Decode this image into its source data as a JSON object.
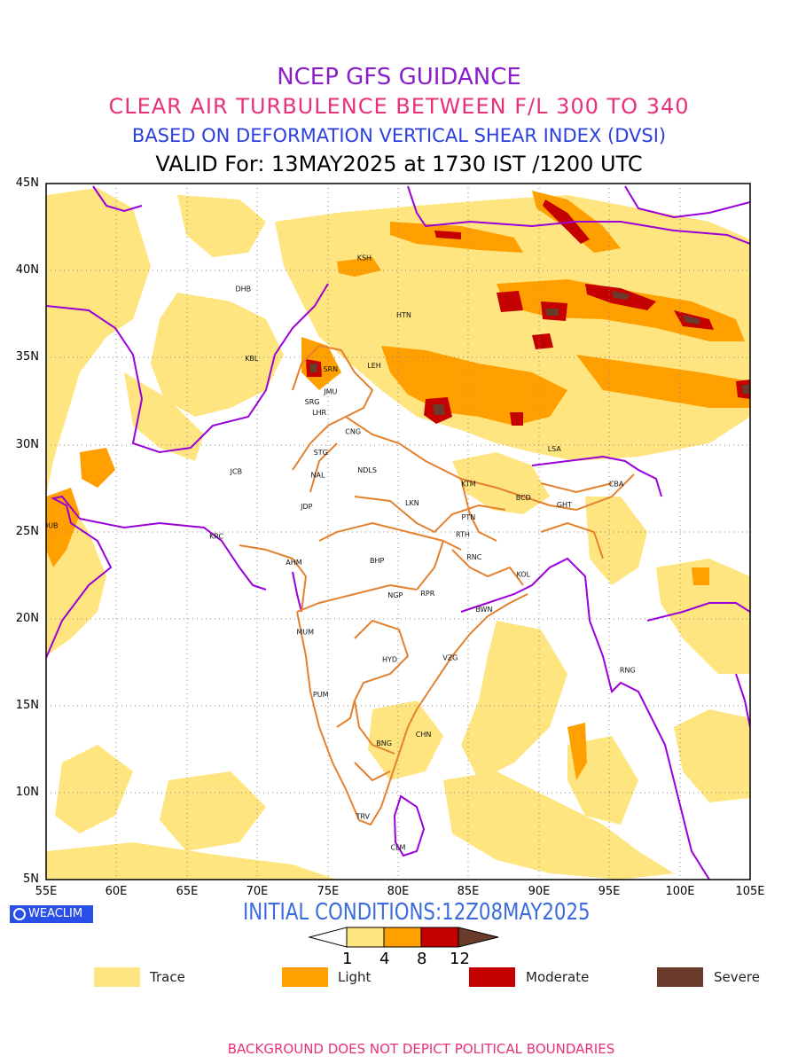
{
  "titles": {
    "line1": "NCEP GFS GUIDANCE",
    "line2": "CLEAR AIR TURBULENCE BETWEEN F/L 300 TO 340",
    "line3": "BASED ON DEFORMATION VERTICAL SHEAR INDEX (DVSI)",
    "line4": "VALID For: 13MAY2025 at 1730 IST /1200 UTC"
  },
  "axes": {
    "lat_labels": [
      "45N",
      "40N",
      "35N",
      "30N",
      "25N",
      "20N",
      "15N",
      "10N",
      "5N"
    ],
    "lon_labels": [
      "55E",
      "60E",
      "65E",
      "70E",
      "75E",
      "80E",
      "85E",
      "90E",
      "95E",
      "100E",
      "105E"
    ],
    "lat_range": [
      5,
      45
    ],
    "lon_range": [
      55,
      105
    ],
    "grid": "dotted"
  },
  "cities": [
    {
      "code": "KSH",
      "lon": 77.6,
      "lat": 40.6
    },
    {
      "code": "DHB",
      "lon": 69.0,
      "lat": 38.8
    },
    {
      "code": "HTN",
      "lon": 80.4,
      "lat": 37.3
    },
    {
      "code": "KBL",
      "lon": 69.6,
      "lat": 34.8
    },
    {
      "code": "SRN",
      "lon": 75.2,
      "lat": 34.2
    },
    {
      "code": "LEH",
      "lon": 78.3,
      "lat": 34.4
    },
    {
      "code": "JMU",
      "lon": 75.2,
      "lat": 32.9
    },
    {
      "code": "SRG",
      "lon": 73.9,
      "lat": 32.3
    },
    {
      "code": "LHR",
      "lon": 74.4,
      "lat": 31.7
    },
    {
      "code": "CNG",
      "lon": 76.8,
      "lat": 30.6
    },
    {
      "code": "STG",
      "lon": 74.5,
      "lat": 29.4
    },
    {
      "code": "LSA",
      "lon": 91.1,
      "lat": 29.6
    },
    {
      "code": "JCB",
      "lon": 68.5,
      "lat": 28.3
    },
    {
      "code": "NAL",
      "lon": 74.3,
      "lat": 28.1
    },
    {
      "code": "NDLS",
      "lon": 77.8,
      "lat": 28.4
    },
    {
      "code": "KTM",
      "lon": 85.0,
      "lat": 27.6
    },
    {
      "code": "CBA",
      "lon": 95.5,
      "lat": 27.6
    },
    {
      "code": "BCD",
      "lon": 88.9,
      "lat": 26.8
    },
    {
      "code": "JDP",
      "lon": 73.5,
      "lat": 26.3
    },
    {
      "code": "LKN",
      "lon": 81.0,
      "lat": 26.5
    },
    {
      "code": "GHT",
      "lon": 91.8,
      "lat": 26.4
    },
    {
      "code": "PTN",
      "lon": 85.0,
      "lat": 25.7
    },
    {
      "code": "DUB",
      "lon": 55.3,
      "lat": 25.2
    },
    {
      "code": "RTH",
      "lon": 84.6,
      "lat": 24.7
    },
    {
      "code": "KRC",
      "lon": 67.1,
      "lat": 24.6
    },
    {
      "code": "BHP",
      "lon": 78.5,
      "lat": 23.2
    },
    {
      "code": "AHM",
      "lon": 72.6,
      "lat": 23.1
    },
    {
      "code": "RNC",
      "lon": 85.4,
      "lat": 23.4
    },
    {
      "code": "KOL",
      "lon": 88.9,
      "lat": 22.4
    },
    {
      "code": "NGP",
      "lon": 79.8,
      "lat": 21.2
    },
    {
      "code": "RPR",
      "lon": 82.1,
      "lat": 21.3
    },
    {
      "code": "BWN",
      "lon": 86.1,
      "lat": 20.4
    },
    {
      "code": "MUM",
      "lon": 73.4,
      "lat": 19.1
    },
    {
      "code": "HYD",
      "lon": 79.4,
      "lat": 17.5
    },
    {
      "code": "VZG",
      "lon": 83.7,
      "lat": 17.6
    },
    {
      "code": "RNG",
      "lon": 96.3,
      "lat": 16.9
    },
    {
      "code": "PUM",
      "lon": 74.5,
      "lat": 15.5
    },
    {
      "code": "CHN",
      "lon": 81.8,
      "lat": 13.2
    },
    {
      "code": "BNG",
      "lon": 79.0,
      "lat": 12.7
    },
    {
      "code": "TRV",
      "lon": 77.5,
      "lat": 8.5
    },
    {
      "code": "CLM",
      "lon": 80.0,
      "lat": 6.7
    }
  ],
  "logo": "WEACLIM",
  "initial_conditions": "INITIAL CONDITIONS:12Z08MAY2025",
  "colorbar": {
    "ticks": [
      "1",
      "4",
      "8",
      "12"
    ],
    "colors": [
      "#ffe57f",
      "#ffa000",
      "#c40000",
      "#6a3b2a"
    ]
  },
  "legend": [
    {
      "label": "Trace",
      "color": "#ffe57f"
    },
    {
      "label": "Light",
      "color": "#ffa000"
    },
    {
      "label": "Moderate",
      "color": "#c40000"
    },
    {
      "label": "Severe",
      "color": "#6a3b2a"
    }
  ],
  "colors": {
    "coast": "#9a00d8",
    "state_border": "#e4812e",
    "trace": "#ffe57f",
    "light": "#ffa000",
    "moderate": "#c40000",
    "severe": "#6a3b2a"
  },
  "footer_note": "BACKGROUND DOES NOT DEPICT POLITICAL BOUNDARIES"
}
